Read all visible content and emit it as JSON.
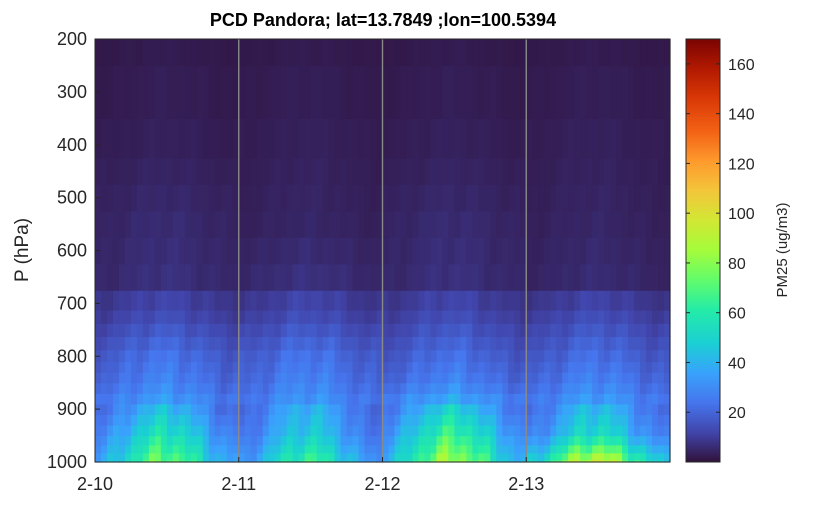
{
  "chart_data": {
    "type": "heatmap",
    "title": "PCD Pandora; lat=13.7849 ;lon=100.5394",
    "ylabel": "P (hPa)",
    "colorbar_label": "PM25 (ug/m3)",
    "x_ticks": [
      "2-10",
      "2-11",
      "2-12",
      "2-13"
    ],
    "y_ticks": [
      200,
      300,
      400,
      500,
      600,
      700,
      800,
      900,
      1000
    ],
    "colorbar_ticks": [
      20,
      40,
      60,
      80,
      100,
      120,
      140,
      160
    ],
    "xlim": [
      "2-10",
      "2-13 23:00"
    ],
    "ylim": [
      1000,
      200
    ],
    "clim": [
      0,
      170
    ],
    "colormap": "turbo",
    "grid": "vertical lines at date ticks",
    "row_pressures_hpa": [
      1000,
      990,
      975,
      960,
      940,
      920,
      900,
      880,
      860,
      840,
      820,
      800,
      775,
      750,
      725,
      700,
      650,
      600,
      550,
      500,
      450,
      400,
      300,
      200
    ],
    "values_description": "hourly PM25 profile (ug/m3), 96 time steps, rows listed from surface upward",
    "values_by_level_and_day": [
      {
        "level_hpa": 1000,
        "day_2_10": 55,
        "day_2_11": 48,
        "day_2_12": 62,
        "day_2_13": 70
      },
      {
        "level_hpa": 950,
        "day_2_10": 42,
        "day_2_11": 35,
        "day_2_12": 48,
        "day_2_13": 40
      },
      {
        "level_hpa": 900,
        "day_2_10": 32,
        "day_2_11": 30,
        "day_2_12": 36,
        "day_2_13": 32
      },
      {
        "level_hpa": 850,
        "day_2_10": 24,
        "day_2_11": 24,
        "day_2_12": 24,
        "day_2_13": 24
      },
      {
        "level_hpa": 800,
        "day_2_10": 20,
        "day_2_11": 20,
        "day_2_12": 19,
        "day_2_13": 19
      },
      {
        "level_hpa": 725,
        "day_2_10": 12,
        "day_2_11": 12,
        "day_2_12": 12,
        "day_2_13": 12
      },
      {
        "level_hpa": 650,
        "day_2_10": 6,
        "day_2_11": 6,
        "day_2_12": 6,
        "day_2_13": 5
      },
      {
        "level_hpa": 550,
        "day_2_10": 5,
        "day_2_11": 4,
        "day_2_12": 5,
        "day_2_13": 4
      },
      {
        "level_hpa": 400,
        "day_2_10": 3,
        "day_2_11": 3,
        "day_2_12": 3,
        "day_2_13": 3
      },
      {
        "level_hpa": 200,
        "day_2_10": 2,
        "day_2_11": 2,
        "day_2_12": 2,
        "day_2_13": 2
      }
    ]
  }
}
